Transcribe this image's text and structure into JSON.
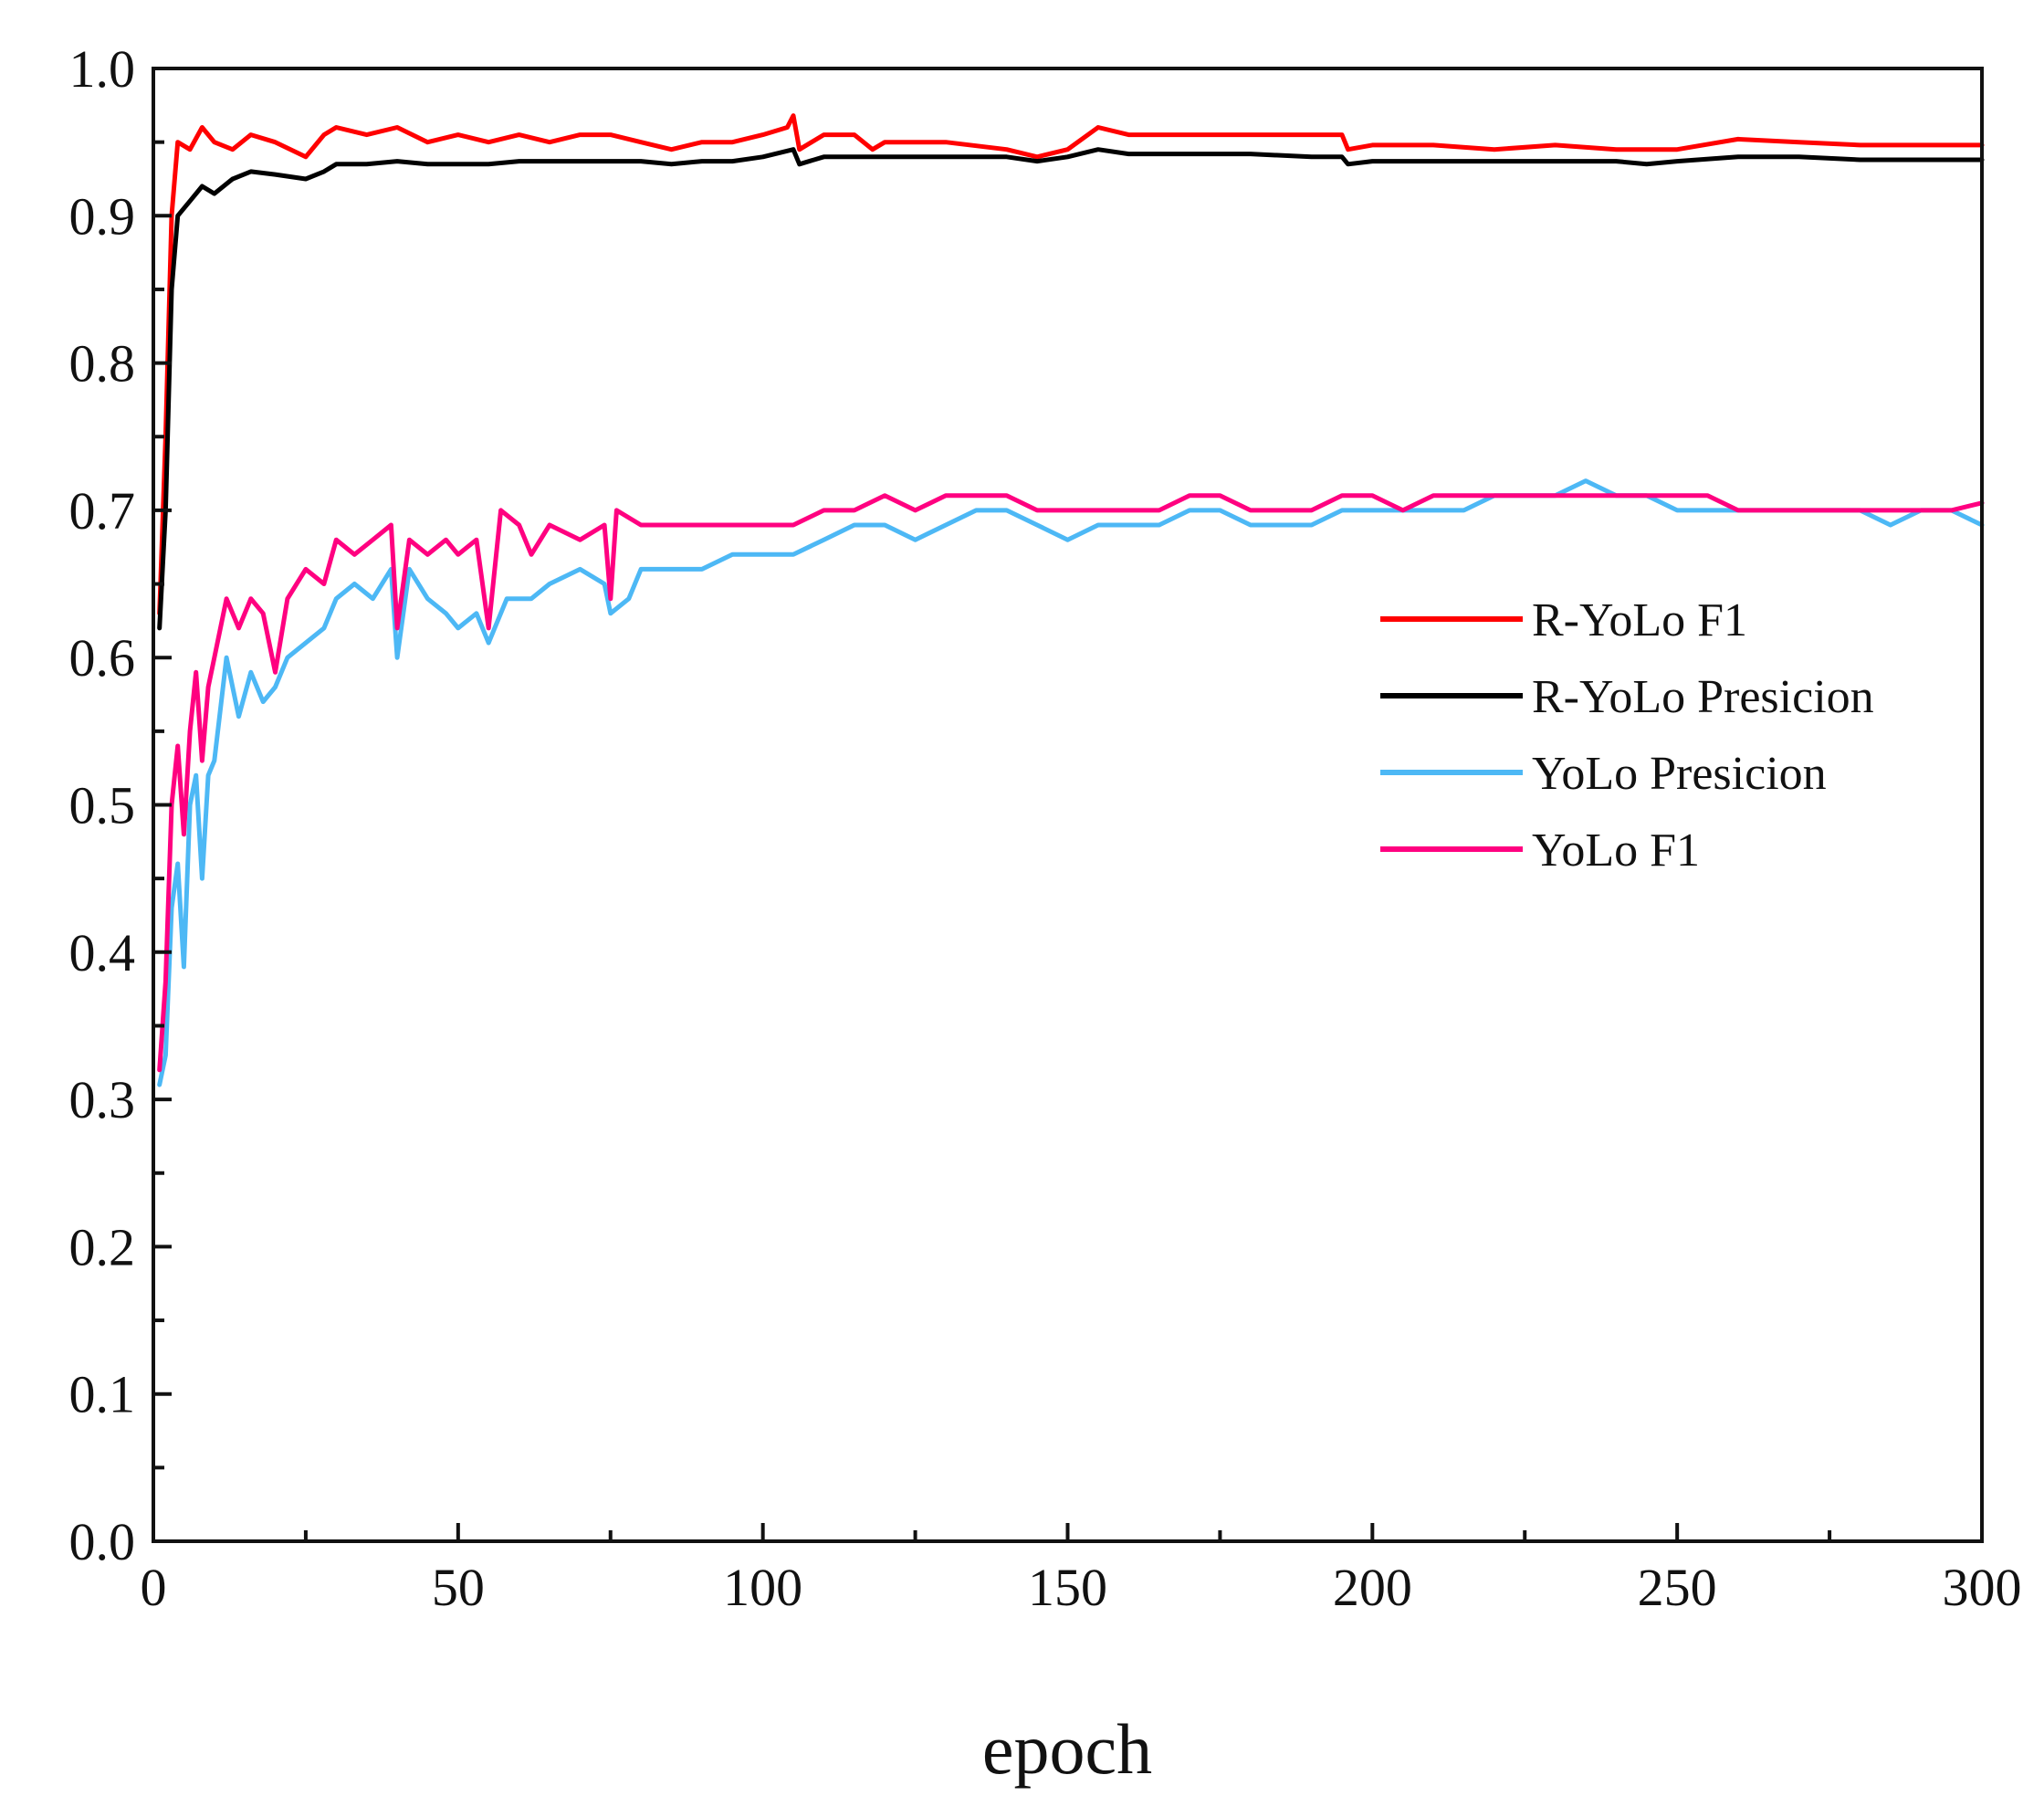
{
  "chart_data": {
    "type": "line",
    "title": "",
    "xlabel": "epoch",
    "ylabel": "",
    "xlim": [
      0,
      300
    ],
    "ylim": [
      0.0,
      1.0
    ],
    "x_ticks": [
      0,
      50,
      100,
      150,
      200,
      250,
      300
    ],
    "x_tick_labels": [
      "0",
      "50",
      "100",
      "150",
      "200",
      "250",
      "300"
    ],
    "y_ticks": [
      0.0,
      0.1,
      0.2,
      0.3,
      0.4,
      0.5,
      0.6,
      0.7,
      0.8,
      0.9,
      1.0
    ],
    "y_tick_labels": [
      "0.0",
      "0.1",
      "0.2",
      "0.3",
      "0.4",
      "0.5",
      "0.6",
      "0.7",
      "0.8",
      "0.9",
      "1.0"
    ],
    "grid": false,
    "legend_position": "center-right",
    "series": [
      {
        "name": "R-YoLo F1",
        "color": "#ff0000",
        "points": [
          [
            1,
            0.63
          ],
          [
            2,
            0.75
          ],
          [
            3,
            0.9
          ],
          [
            4,
            0.95
          ],
          [
            6,
            0.945
          ],
          [
            8,
            0.96
          ],
          [
            10,
            0.95
          ],
          [
            13,
            0.945
          ],
          [
            16,
            0.955
          ],
          [
            20,
            0.95
          ],
          [
            25,
            0.94
          ],
          [
            28,
            0.955
          ],
          [
            30,
            0.96
          ],
          [
            35,
            0.955
          ],
          [
            40,
            0.96
          ],
          [
            45,
            0.95
          ],
          [
            50,
            0.955
          ],
          [
            55,
            0.95
          ],
          [
            60,
            0.955
          ],
          [
            65,
            0.95
          ],
          [
            70,
            0.955
          ],
          [
            75,
            0.955
          ],
          [
            80,
            0.95
          ],
          [
            85,
            0.945
          ],
          [
            90,
            0.95
          ],
          [
            95,
            0.95
          ],
          [
            100,
            0.955
          ],
          [
            104,
            0.96
          ],
          [
            105,
            0.968
          ],
          [
            106,
            0.945
          ],
          [
            110,
            0.955
          ],
          [
            115,
            0.955
          ],
          [
            118,
            0.945
          ],
          [
            120,
            0.95
          ],
          [
            130,
            0.95
          ],
          [
            140,
            0.945
          ],
          [
            145,
            0.94
          ],
          [
            150,
            0.945
          ],
          [
            155,
            0.96
          ],
          [
            160,
            0.955
          ],
          [
            170,
            0.955
          ],
          [
            180,
            0.955
          ],
          [
            190,
            0.955
          ],
          [
            195,
            0.955
          ],
          [
            196,
            0.945
          ],
          [
            200,
            0.948
          ],
          [
            210,
            0.948
          ],
          [
            220,
            0.945
          ],
          [
            230,
            0.948
          ],
          [
            240,
            0.945
          ],
          [
            245,
            0.945
          ],
          [
            250,
            0.945
          ],
          [
            260,
            0.952
          ],
          [
            270,
            0.95
          ],
          [
            280,
            0.948
          ],
          [
            290,
            0.948
          ],
          [
            300,
            0.948
          ]
        ]
      },
      {
        "name": "R-YoLo Presicion",
        "color": "#000000",
        "points": [
          [
            1,
            0.62
          ],
          [
            2,
            0.7
          ],
          [
            3,
            0.85
          ],
          [
            4,
            0.9
          ],
          [
            6,
            0.91
          ],
          [
            8,
            0.92
          ],
          [
            10,
            0.915
          ],
          [
            13,
            0.925
          ],
          [
            16,
            0.93
          ],
          [
            20,
            0.928
          ],
          [
            25,
            0.925
          ],
          [
            28,
            0.93
          ],
          [
            30,
            0.935
          ],
          [
            35,
            0.935
          ],
          [
            40,
            0.937
          ],
          [
            45,
            0.935
          ],
          [
            50,
            0.935
          ],
          [
            55,
            0.935
          ],
          [
            60,
            0.937
          ],
          [
            65,
            0.937
          ],
          [
            70,
            0.937
          ],
          [
            75,
            0.937
          ],
          [
            80,
            0.937
          ],
          [
            85,
            0.935
          ],
          [
            90,
            0.937
          ],
          [
            95,
            0.937
          ],
          [
            100,
            0.94
          ],
          [
            105,
            0.945
          ],
          [
            106,
            0.935
          ],
          [
            110,
            0.94
          ],
          [
            115,
            0.94
          ],
          [
            120,
            0.94
          ],
          [
            130,
            0.94
          ],
          [
            140,
            0.94
          ],
          [
            145,
            0.937
          ],
          [
            150,
            0.94
          ],
          [
            155,
            0.945
          ],
          [
            160,
            0.942
          ],
          [
            170,
            0.942
          ],
          [
            180,
            0.942
          ],
          [
            190,
            0.94
          ],
          [
            195,
            0.94
          ],
          [
            196,
            0.935
          ],
          [
            200,
            0.937
          ],
          [
            210,
            0.937
          ],
          [
            220,
            0.937
          ],
          [
            230,
            0.937
          ],
          [
            240,
            0.937
          ],
          [
            245,
            0.935
          ],
          [
            250,
            0.937
          ],
          [
            260,
            0.94
          ],
          [
            270,
            0.94
          ],
          [
            280,
            0.938
          ],
          [
            290,
            0.938
          ],
          [
            300,
            0.938
          ]
        ]
      },
      {
        "name": "YoLo Presicion",
        "color": "#4db8f5",
        "points": [
          [
            1,
            0.31
          ],
          [
            2,
            0.33
          ],
          [
            3,
            0.43
          ],
          [
            4,
            0.46
          ],
          [
            5,
            0.39
          ],
          [
            6,
            0.5
          ],
          [
            7,
            0.52
          ],
          [
            8,
            0.45
          ],
          [
            9,
            0.52
          ],
          [
            10,
            0.53
          ],
          [
            12,
            0.6
          ],
          [
            14,
            0.56
          ],
          [
            16,
            0.59
          ],
          [
            18,
            0.57
          ],
          [
            20,
            0.58
          ],
          [
            22,
            0.6
          ],
          [
            25,
            0.61
          ],
          [
            28,
            0.62
          ],
          [
            30,
            0.64
          ],
          [
            33,
            0.65
          ],
          [
            36,
            0.64
          ],
          [
            39,
            0.66
          ],
          [
            40,
            0.6
          ],
          [
            42,
            0.66
          ],
          [
            45,
            0.64
          ],
          [
            48,
            0.63
          ],
          [
            50,
            0.62
          ],
          [
            53,
            0.63
          ],
          [
            55,
            0.61
          ],
          [
            58,
            0.64
          ],
          [
            62,
            0.64
          ],
          [
            65,
            0.65
          ],
          [
            70,
            0.66
          ],
          [
            74,
            0.65
          ],
          [
            75,
            0.63
          ],
          [
            78,
            0.64
          ],
          [
            80,
            0.66
          ],
          [
            85,
            0.66
          ],
          [
            90,
            0.66
          ],
          [
            95,
            0.67
          ],
          [
            100,
            0.67
          ],
          [
            105,
            0.67
          ],
          [
            110,
            0.68
          ],
          [
            115,
            0.69
          ],
          [
            120,
            0.69
          ],
          [
            125,
            0.68
          ],
          [
            130,
            0.69
          ],
          [
            135,
            0.7
          ],
          [
            140,
            0.7
          ],
          [
            145,
            0.69
          ],
          [
            150,
            0.68
          ],
          [
            155,
            0.69
          ],
          [
            160,
            0.69
          ],
          [
            165,
            0.69
          ],
          [
            170,
            0.7
          ],
          [
            175,
            0.7
          ],
          [
            180,
            0.69
          ],
          [
            185,
            0.69
          ],
          [
            190,
            0.69
          ],
          [
            195,
            0.7
          ],
          [
            200,
            0.7
          ],
          [
            205,
            0.7
          ],
          [
            210,
            0.7
          ],
          [
            215,
            0.7
          ],
          [
            220,
            0.71
          ],
          [
            225,
            0.71
          ],
          [
            230,
            0.71
          ],
          [
            235,
            0.72
          ],
          [
            240,
            0.71
          ],
          [
            245,
            0.71
          ],
          [
            250,
            0.7
          ],
          [
            255,
            0.7
          ],
          [
            260,
            0.7
          ],
          [
            265,
            0.7
          ],
          [
            270,
            0.7
          ],
          [
            275,
            0.7
          ],
          [
            280,
            0.7
          ],
          [
            285,
            0.69
          ],
          [
            290,
            0.7
          ],
          [
            295,
            0.7
          ],
          [
            300,
            0.69
          ]
        ]
      },
      {
        "name": "YoLo F1",
        "color": "#ff0080",
        "points": [
          [
            1,
            0.32
          ],
          [
            2,
            0.38
          ],
          [
            3,
            0.5
          ],
          [
            4,
            0.54
          ],
          [
            5,
            0.48
          ],
          [
            6,
            0.55
          ],
          [
            7,
            0.59
          ],
          [
            8,
            0.53
          ],
          [
            9,
            0.58
          ],
          [
            10,
            0.6
          ],
          [
            12,
            0.64
          ],
          [
            14,
            0.62
          ],
          [
            16,
            0.64
          ],
          [
            18,
            0.63
          ],
          [
            20,
            0.59
          ],
          [
            22,
            0.64
          ],
          [
            25,
            0.66
          ],
          [
            28,
            0.65
          ],
          [
            30,
            0.68
          ],
          [
            33,
            0.67
          ],
          [
            36,
            0.68
          ],
          [
            39,
            0.69
          ],
          [
            40,
            0.62
          ],
          [
            42,
            0.68
          ],
          [
            45,
            0.67
          ],
          [
            48,
            0.68
          ],
          [
            50,
            0.67
          ],
          [
            53,
            0.68
          ],
          [
            55,
            0.62
          ],
          [
            57,
            0.7
          ],
          [
            60,
            0.69
          ],
          [
            62,
            0.67
          ],
          [
            65,
            0.69
          ],
          [
            70,
            0.68
          ],
          [
            74,
            0.69
          ],
          [
            75,
            0.64
          ],
          [
            76,
            0.7
          ],
          [
            80,
            0.69
          ],
          [
            85,
            0.69
          ],
          [
            90,
            0.69
          ],
          [
            95,
            0.69
          ],
          [
            100,
            0.69
          ],
          [
            105,
            0.69
          ],
          [
            110,
            0.7
          ],
          [
            115,
            0.7
          ],
          [
            120,
            0.71
          ],
          [
            125,
            0.7
          ],
          [
            130,
            0.71
          ],
          [
            135,
            0.71
          ],
          [
            140,
            0.71
          ],
          [
            145,
            0.7
          ],
          [
            150,
            0.7
          ],
          [
            155,
            0.7
          ],
          [
            160,
            0.7
          ],
          [
            165,
            0.7
          ],
          [
            170,
            0.71
          ],
          [
            175,
            0.71
          ],
          [
            180,
            0.7
          ],
          [
            185,
            0.7
          ],
          [
            190,
            0.7
          ],
          [
            195,
            0.71
          ],
          [
            200,
            0.71
          ],
          [
            205,
            0.7
          ],
          [
            210,
            0.71
          ],
          [
            215,
            0.71
          ],
          [
            220,
            0.71
          ],
          [
            225,
            0.71
          ],
          [
            230,
            0.71
          ],
          [
            235,
            0.71
          ],
          [
            240,
            0.71
          ],
          [
            245,
            0.71
          ],
          [
            250,
            0.71
          ],
          [
            255,
            0.71
          ],
          [
            260,
            0.7
          ],
          [
            265,
            0.7
          ],
          [
            270,
            0.7
          ],
          [
            275,
            0.7
          ],
          [
            280,
            0.7
          ],
          [
            285,
            0.7
          ],
          [
            290,
            0.7
          ],
          [
            295,
            0.7
          ],
          [
            300,
            0.705
          ]
        ]
      }
    ]
  }
}
